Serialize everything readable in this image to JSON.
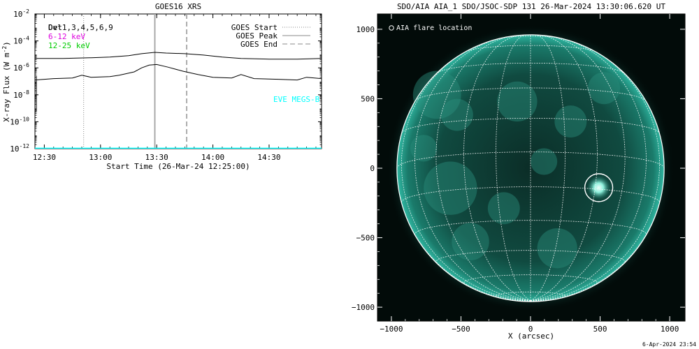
{
  "chart_data": [
    {
      "type": "line",
      "title": "GOES16 XRS",
      "xlabel": "Start Time (26-Mar-24 12:25:00)",
      "ylabel_main": "X-ray Flux (W m",
      "ylabel_exp": "-2",
      "ylabel_close": ")",
      "y_scale": "log",
      "ylim_exp": [
        -12,
        -2
      ],
      "y_ticks": [
        {
          "exp": -12,
          "label": "-12"
        },
        {
          "exp": -10,
          "label": "-10"
        },
        {
          "exp": -8,
          "label": "-8"
        },
        {
          "exp": -6,
          "label": "-6"
        },
        {
          "exp": -4,
          "label": "-4"
        },
        {
          "exp": -2,
          "label": "-2"
        }
      ],
      "xlim": [
        "12:25",
        "14:58"
      ],
      "x_ticks": [
        "12:30",
        "13:00",
        "13:30",
        "14:00",
        "14:30"
      ],
      "channel_labels": [
        {
          "text": "Det1,3,4,5,6,9",
          "color": "#000000"
        },
        {
          "text": "6-12 keV",
          "color": "#dd00dd"
        },
        {
          "text": "12-25 keV",
          "color": "#00cc00"
        }
      ],
      "channel_overlay_text": "Ovl",
      "legend": [
        {
          "label": "GOES Start",
          "style": "dotted"
        },
        {
          "label": "GOES Peak",
          "style": "solid"
        },
        {
          "label": "GOES End",
          "style": "dashed"
        }
      ],
      "eve_label": "EVE MEGS-B",
      "eve_color": "#00ffff",
      "vlines": {
        "start": "12:51",
        "peak": "13:29",
        "end": "13:46"
      },
      "series": [
        {
          "color": "#000000",
          "points": [
            [
              "12:25",
              -5.3
            ],
            [
              "12:40",
              -5.3
            ],
            [
              "12:55",
              -5.25
            ],
            [
              "13:05",
              -5.2
            ],
            [
              "13:15",
              -5.1
            ],
            [
              "13:22",
              -4.95
            ],
            [
              "13:29",
              -4.85
            ],
            [
              "13:35",
              -4.9
            ],
            [
              "13:45",
              -4.95
            ],
            [
              "13:55",
              -5.05
            ],
            [
              "14:05",
              -5.2
            ],
            [
              "14:15",
              -5.3
            ],
            [
              "14:30",
              -5.35
            ],
            [
              "14:45",
              -5.35
            ],
            [
              "14:58",
              -5.3
            ]
          ]
        },
        {
          "color": "#000000",
          "points": [
            [
              "12:25",
              -6.9
            ],
            [
              "12:35",
              -6.8
            ],
            [
              "12:45",
              -6.75
            ],
            [
              "12:50",
              -6.55
            ],
            [
              "12:55",
              -6.7
            ],
            [
              "13:05",
              -6.65
            ],
            [
              "13:10",
              -6.55
            ],
            [
              "13:18",
              -6.3
            ],
            [
              "13:22",
              -6.0
            ],
            [
              "13:26",
              -5.8
            ],
            [
              "13:30",
              -5.75
            ],
            [
              "13:36",
              -5.95
            ],
            [
              "13:44",
              -6.25
            ],
            [
              "13:52",
              -6.5
            ],
            [
              "14:00",
              -6.7
            ],
            [
              "14:10",
              -6.75
            ],
            [
              "14:15",
              -6.5
            ],
            [
              "14:22",
              -6.8
            ],
            [
              "14:35",
              -6.85
            ],
            [
              "14:45",
              -6.9
            ],
            [
              "14:50",
              -6.7
            ],
            [
              "14:58",
              -6.8
            ]
          ]
        },
        {
          "color": "#00ffff",
          "points": [
            [
              "12:25",
              -11.98
            ],
            [
              "14:58",
              -11.98
            ]
          ]
        }
      ]
    },
    {
      "type": "scatter",
      "title": "SDO/AIA AIA_1 SDO/JSOC-SDP 131 26-Mar-2024 13:30:06.620 UT",
      "xlabel": "X (arcsec)",
      "ylabel": "",
      "xlim": [
        -1100,
        1110
      ],
      "ylim": [
        -1100,
        1110
      ],
      "x_ticks": [
        "-1000",
        "-500",
        "0",
        "500",
        "1000"
      ],
      "y_ticks": [
        "1000",
        "500",
        "0",
        "-500",
        "-1000"
      ],
      "legend_label": "AIA flare location",
      "flare_location_arcsec": [
        490,
        -140
      ],
      "solar_radius_arcsec": 960
    }
  ],
  "footer_date": "6-Apr-2024 23:54"
}
